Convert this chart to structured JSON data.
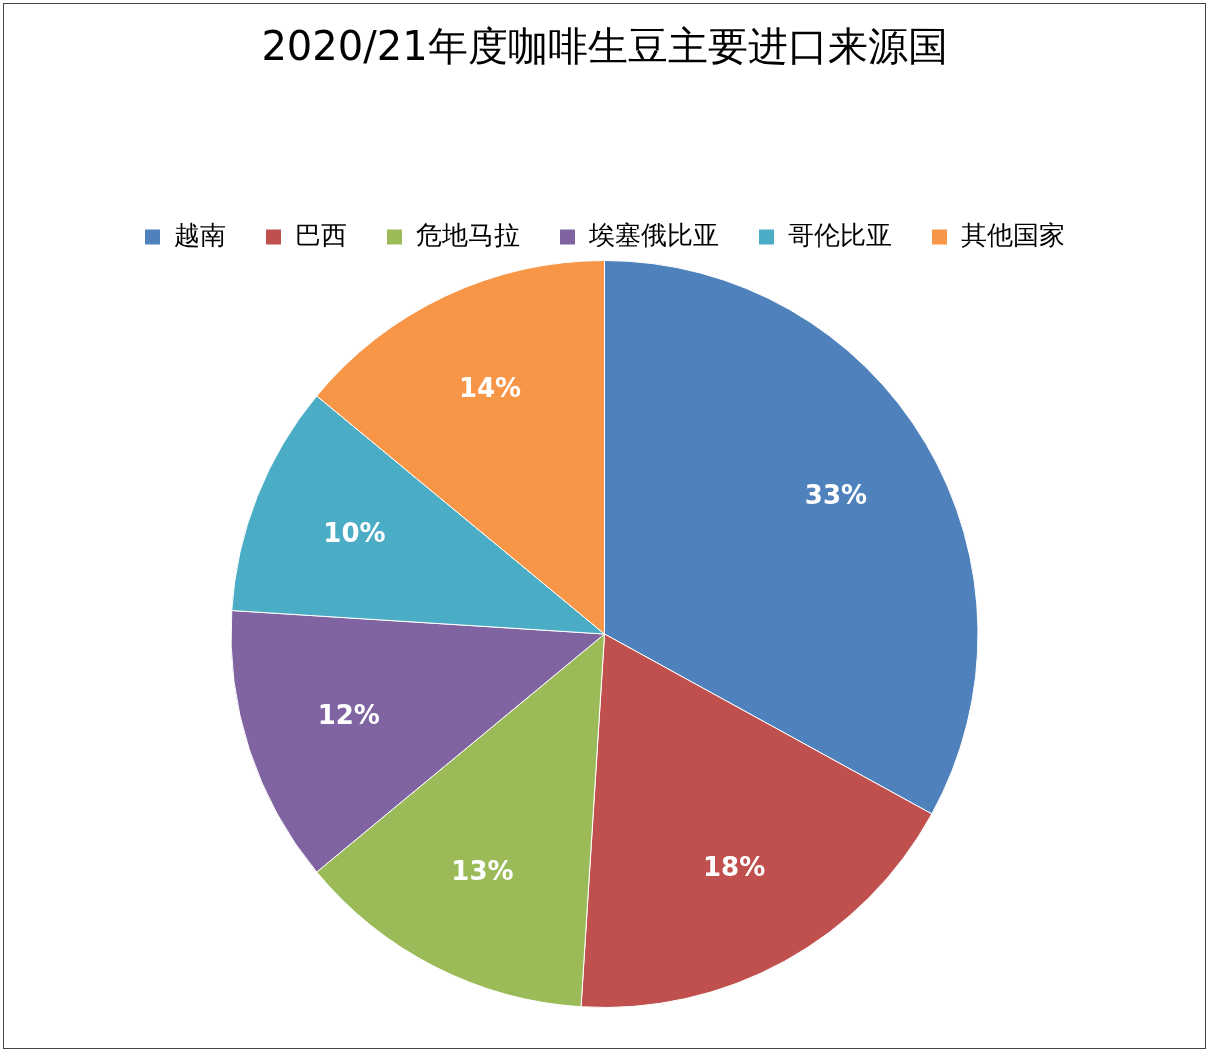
{
  "chart_data": {
    "type": "pie",
    "title": "2020/21年度咖啡生豆主要进口来源国",
    "categories": [
      "越南",
      "巴西",
      "危地马拉",
      "埃塞俄比亚",
      "哥伦比亚",
      "其他国家"
    ],
    "values": [
      33,
      18,
      13,
      12,
      10,
      14
    ],
    "colors": [
      "#4f81bd",
      "#c0504d",
      "#9bbb59",
      "#8064a2",
      "#4bacc6",
      "#f79646"
    ],
    "value_labels": [
      "33%",
      "18%",
      "13%",
      "12%",
      "10%",
      "14%"
    ],
    "legend": "top"
  }
}
